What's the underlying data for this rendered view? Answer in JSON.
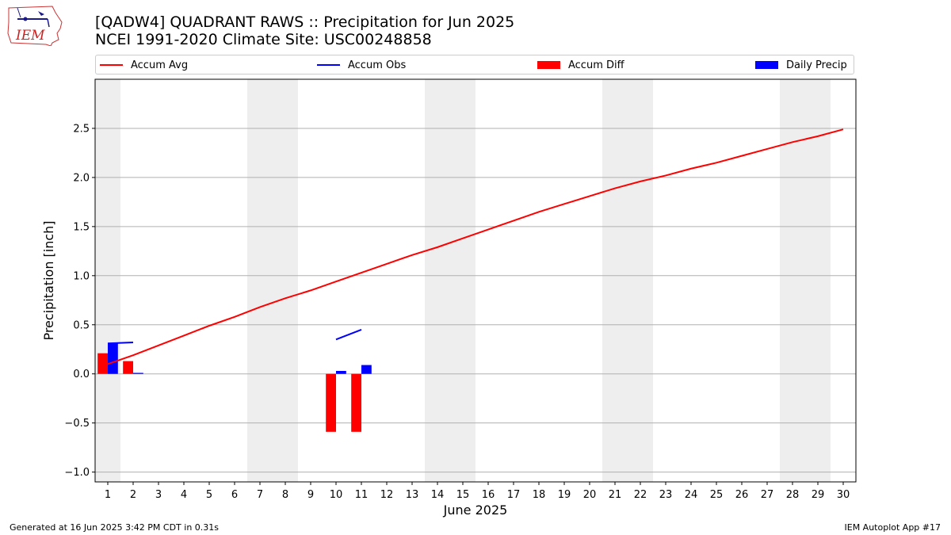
{
  "header": {
    "title_line1": "[QADW4] QUADRANT RAWS :: Precipitation for Jun 2025",
    "title_line2": "NCEI 1991-2020 Climate Site: USC00248858"
  },
  "footer": {
    "generated": "Generated at 16 Jun 2025 3:42 PM CDT in 0.31s",
    "app": "IEM Autoplot App #17"
  },
  "logo": {
    "text": "IEM"
  },
  "colors": {
    "avg": "#ff0000",
    "obs": "#0000ff",
    "diff": "#ff0000",
    "daily": "#0000ff",
    "weekend": "#eeeeee",
    "grid": "#b0b0b0"
  },
  "chart_data": {
    "type": "bar",
    "xlabel": "June 2025",
    "ylabel": "Precipitation [inch]",
    "xlim": [
      0.5,
      30.5
    ],
    "ylim": [
      -1.1,
      3.0
    ],
    "grid": "horizontal",
    "legend_placement": "top",
    "days": [
      1,
      2,
      3,
      4,
      5,
      6,
      7,
      8,
      9,
      10,
      11,
      12,
      13,
      14,
      15,
      16,
      17,
      18,
      19,
      20,
      21,
      22,
      23,
      24,
      25,
      26,
      27,
      28,
      29,
      30
    ],
    "yticks": [
      -1.0,
      -0.5,
      0.0,
      0.5,
      1.0,
      1.5,
      2.0,
      2.5
    ],
    "ytick_labels": [
      "−1.0",
      "−0.5",
      "0.0",
      "0.5",
      "1.0",
      "1.5",
      "2.0",
      "2.5"
    ],
    "weekend_ranges": [
      [
        0.5,
        1.5
      ],
      [
        6.5,
        8.5
      ],
      [
        13.5,
        15.5
      ],
      [
        20.5,
        22.5
      ],
      [
        27.5,
        29.5
      ]
    ],
    "series": [
      {
        "name": "Accum Avg",
        "kind": "line",
        "x": [
          1,
          2,
          3,
          4,
          5,
          6,
          7,
          8,
          9,
          10,
          11,
          12,
          13,
          14,
          15,
          16,
          17,
          18,
          19,
          20,
          21,
          22,
          23,
          24,
          25,
          26,
          27,
          28,
          29,
          30
        ],
        "y": [
          0.1,
          0.19,
          0.29,
          0.39,
          0.49,
          0.58,
          0.68,
          0.77,
          0.85,
          0.94,
          1.03,
          1.12,
          1.21,
          1.29,
          1.38,
          1.47,
          1.56,
          1.65,
          1.73,
          1.81,
          1.89,
          1.96,
          2.02,
          2.09,
          2.15,
          2.22,
          2.29,
          2.36,
          2.42,
          2.49
        ]
      },
      {
        "name": "Accum Obs",
        "kind": "line",
        "segments": [
          {
            "x": [
              1,
              2
            ],
            "y": [
              0.31,
              0.32
            ]
          },
          {
            "x": [
              10,
              11
            ],
            "y": [
              0.35,
              0.45
            ]
          }
        ]
      },
      {
        "name": "Accum Diff",
        "kind": "bar",
        "x": [
          1,
          2,
          10,
          11
        ],
        "y": [
          0.21,
          0.13,
          -0.59,
          -0.59
        ]
      },
      {
        "name": "Daily Precip",
        "kind": "bar",
        "x": [
          1,
          2,
          10,
          11
        ],
        "y": [
          0.31,
          0.01,
          0.03,
          0.09
        ]
      }
    ]
  }
}
